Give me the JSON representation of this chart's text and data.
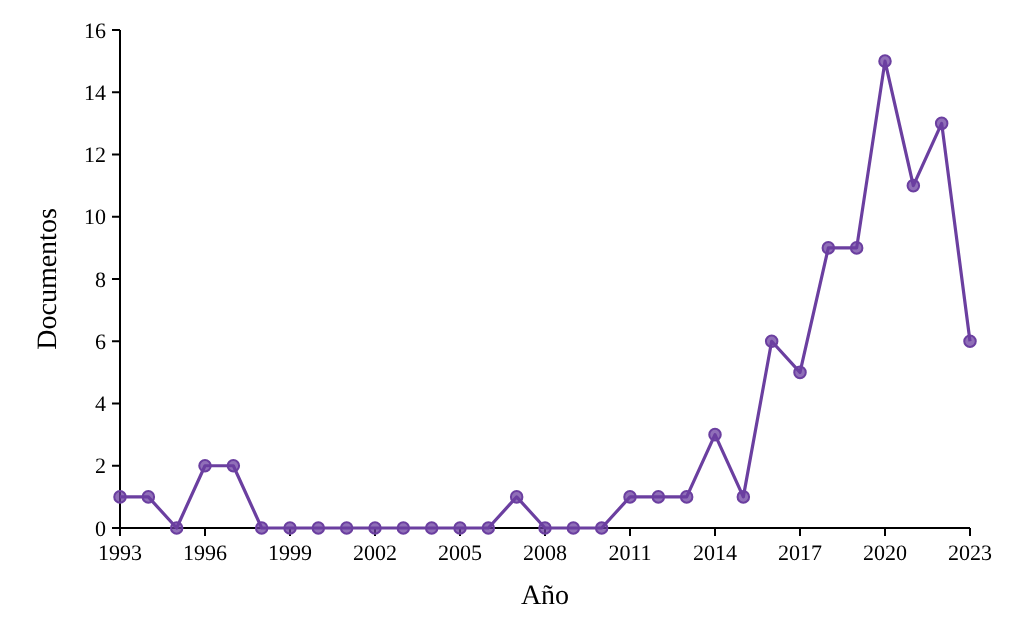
{
  "chart_data": {
    "type": "line",
    "xlabel": "Año",
    "ylabel": "Documentos",
    "x": [
      1993,
      1994,
      1995,
      1996,
      1997,
      1998,
      1999,
      2000,
      2001,
      2002,
      2003,
      2004,
      2005,
      2006,
      2007,
      2008,
      2009,
      2010,
      2011,
      2012,
      2013,
      2014,
      2015,
      2016,
      2017,
      2018,
      2019,
      2020,
      2021,
      2022,
      2023
    ],
    "series": [
      {
        "color": "#6b3fa0",
        "values": [
          1,
          1,
          0,
          2,
          2,
          0,
          0,
          0,
          0,
          0,
          0,
          0,
          0,
          0,
          1,
          0,
          0,
          0,
          1,
          1,
          1,
          3,
          1,
          6,
          5,
          9,
          9,
          15,
          11,
          13,
          6
        ]
      }
    ],
    "xlim": [
      1993,
      2023
    ],
    "xticks": [
      1993,
      1996,
      1999,
      2002,
      2005,
      2008,
      2011,
      2014,
      2017,
      2020,
      2023
    ],
    "ylim": [
      0,
      16
    ],
    "yticks": [
      0,
      2,
      4,
      6,
      8,
      10,
      12,
      14,
      16
    ],
    "marker": "circle",
    "line_style": "solid"
  }
}
